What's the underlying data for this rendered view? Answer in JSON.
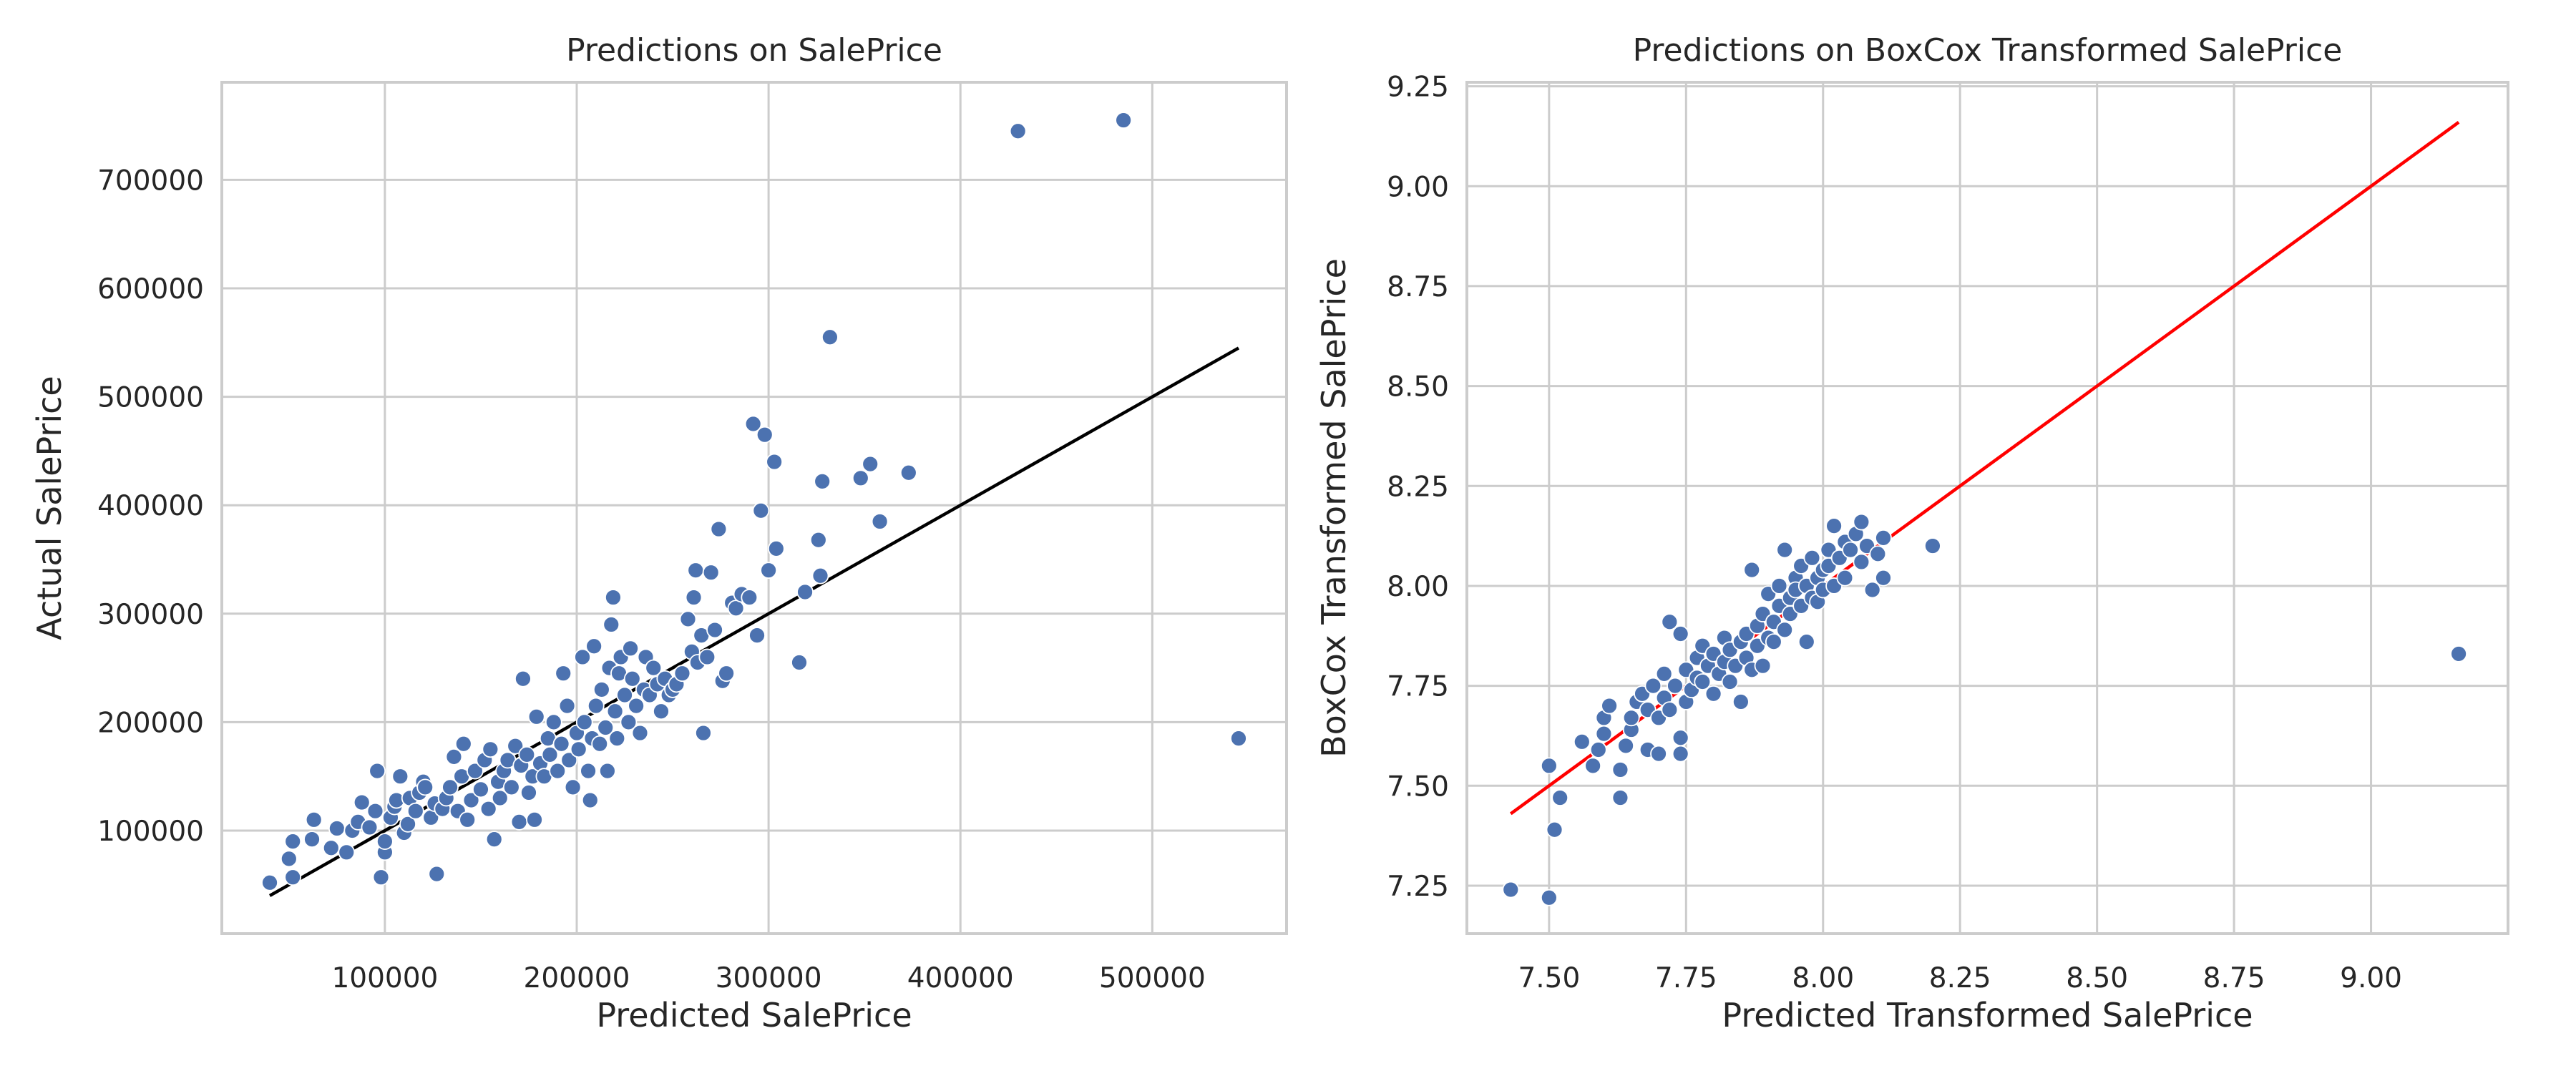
{
  "chart_data": [
    {
      "type": "scatter",
      "title": "Predictions on SalePrice",
      "xlabel": "Predicted SalePrice",
      "ylabel": "Actual SalePrice",
      "xlim": [
        15000,
        570000
      ],
      "ylim": [
        5000,
        790000
      ],
      "xticks": [
        100000,
        200000,
        300000,
        400000,
        500000
      ],
      "yticks": [
        100000,
        200000,
        300000,
        400000,
        500000,
        600000,
        700000
      ],
      "grid": true,
      "colors": {
        "points": "#4c72b0",
        "line": "#000000",
        "axes": "#cccccc"
      },
      "reference_line": {
        "x": [
          40000,
          545000
        ],
        "y": [
          40000,
          545000
        ]
      },
      "points": [
        [
          40000,
          52000
        ],
        [
          52000,
          57000
        ],
        [
          50000,
          74000
        ],
        [
          52000,
          90000
        ],
        [
          62000,
          92000
        ],
        [
          63000,
          110000
        ],
        [
          72000,
          84000
        ],
        [
          75000,
          102000
        ],
        [
          80000,
          80000
        ],
        [
          83000,
          100000
        ],
        [
          86000,
          108000
        ],
        [
          88000,
          126000
        ],
        [
          92000,
          103000
        ],
        [
          95000,
          118000
        ],
        [
          96000,
          155000
        ],
        [
          98000,
          57000
        ],
        [
          100000,
          80000
        ],
        [
          100000,
          90000
        ],
        [
          103000,
          112000
        ],
        [
          105000,
          122000
        ],
        [
          106000,
          128000
        ],
        [
          108000,
          150000
        ],
        [
          110000,
          98000
        ],
        [
          112000,
          106000
        ],
        [
          113000,
          130000
        ],
        [
          116000,
          118000
        ],
        [
          118000,
          135000
        ],
        [
          120000,
          145000
        ],
        [
          121000,
          140000
        ],
        [
          124000,
          112000
        ],
        [
          126000,
          125000
        ],
        [
          127000,
          60000
        ],
        [
          130000,
          120000
        ],
        [
          132000,
          130000
        ],
        [
          134000,
          140000
        ],
        [
          136000,
          168000
        ],
        [
          138000,
          118000
        ],
        [
          140000,
          150000
        ],
        [
          141000,
          180000
        ],
        [
          143000,
          110000
        ],
        [
          145000,
          128000
        ],
        [
          147000,
          155000
        ],
        [
          150000,
          138000
        ],
        [
          152000,
          165000
        ],
        [
          154000,
          120000
        ],
        [
          155000,
          175000
        ],
        [
          157000,
          92000
        ],
        [
          159000,
          145000
        ],
        [
          160000,
          130000
        ],
        [
          162000,
          155000
        ],
        [
          164000,
          165000
        ],
        [
          166000,
          140000
        ],
        [
          168000,
          178000
        ],
        [
          170000,
          108000
        ],
        [
          171000,
          160000
        ],
        [
          172000,
          240000
        ],
        [
          174000,
          170000
        ],
        [
          175000,
          135000
        ],
        [
          177000,
          150000
        ],
        [
          178000,
          110000
        ],
        [
          179000,
          205000
        ],
        [
          181000,
          162000
        ],
        [
          183000,
          150000
        ],
        [
          185000,
          185000
        ],
        [
          186000,
          170000
        ],
        [
          188000,
          200000
        ],
        [
          190000,
          155000
        ],
        [
          192000,
          180000
        ],
        [
          193000,
          245000
        ],
        [
          195000,
          215000
        ],
        [
          196000,
          165000
        ],
        [
          198000,
          140000
        ],
        [
          200000,
          190000
        ],
        [
          201000,
          175000
        ],
        [
          203000,
          260000
        ],
        [
          204000,
          200000
        ],
        [
          206000,
          155000
        ],
        [
          207000,
          128000
        ],
        [
          208000,
          185000
        ],
        [
          209000,
          270000
        ],
        [
          210000,
          215000
        ],
        [
          212000,
          180000
        ],
        [
          213000,
          230000
        ],
        [
          215000,
          195000
        ],
        [
          216000,
          155000
        ],
        [
          217000,
          250000
        ],
        [
          218000,
          290000
        ],
        [
          219000,
          315000
        ],
        [
          220000,
          210000
        ],
        [
          221000,
          185000
        ],
        [
          222000,
          245000
        ],
        [
          223000,
          260000
        ],
        [
          225000,
          225000
        ],
        [
          227000,
          200000
        ],
        [
          228000,
          268000
        ],
        [
          229000,
          240000
        ],
        [
          231000,
          215000
        ],
        [
          233000,
          190000
        ],
        [
          235000,
          230000
        ],
        [
          236000,
          260000
        ],
        [
          238000,
          225000
        ],
        [
          240000,
          250000
        ],
        [
          242000,
          235000
        ],
        [
          244000,
          210000
        ],
        [
          246000,
          240000
        ],
        [
          248000,
          225000
        ],
        [
          250000,
          230000
        ],
        [
          252000,
          235000
        ],
        [
          255000,
          245000
        ],
        [
          258000,
          295000
        ],
        [
          260000,
          265000
        ],
        [
          261000,
          315000
        ],
        [
          262000,
          340000
        ],
        [
          263000,
          255000
        ],
        [
          265000,
          280000
        ],
        [
          266000,
          190000
        ],
        [
          268000,
          260000
        ],
        [
          270000,
          338000
        ],
        [
          272000,
          285000
        ],
        [
          274000,
          378000
        ],
        [
          276000,
          238000
        ],
        [
          278000,
          245000
        ],
        [
          281000,
          310000
        ],
        [
          283000,
          305000
        ],
        [
          286000,
          318000
        ],
        [
          290000,
          315000
        ],
        [
          292000,
          475000
        ],
        [
          294000,
          280000
        ],
        [
          296000,
          395000
        ],
        [
          298000,
          465000
        ],
        [
          300000,
          340000
        ],
        [
          303000,
          440000
        ],
        [
          304000,
          360000
        ],
        [
          316000,
          255000
        ],
        [
          319000,
          320000
        ],
        [
          326000,
          368000
        ],
        [
          327000,
          335000
        ],
        [
          328000,
          422000
        ],
        [
          332000,
          555000
        ],
        [
          348000,
          425000
        ],
        [
          353000,
          438000
        ],
        [
          358000,
          385000
        ],
        [
          373000,
          430000
        ],
        [
          430000,
          745000
        ],
        [
          485000,
          755000
        ],
        [
          545000,
          185000
        ]
      ]
    },
    {
      "type": "scatter",
      "title": "Predictions on BoxCox Transformed SalePrice",
      "xlabel": "Predicted Transformed SalePrice",
      "ylabel": "BoxCox Transformed SalePrice",
      "xlim": [
        7.35,
        9.25
      ],
      "ylim": [
        7.13,
        9.26
      ],
      "xticks": [
        7.5,
        7.75,
        8.0,
        8.25,
        8.5,
        8.75,
        9.0
      ],
      "yticks": [
        7.25,
        7.5,
        7.75,
        8.0,
        8.25,
        8.5,
        8.75,
        9.0,
        9.25
      ],
      "tick_format_decimals": 2,
      "grid": true,
      "colors": {
        "points": "#4c72b0",
        "line": "#ff0000",
        "axes": "#cccccc"
      },
      "reference_line": {
        "x": [
          7.43,
          9.16
        ],
        "y": [
          7.43,
          9.16
        ]
      },
      "points": [
        [
          7.43,
          7.24
        ],
        [
          7.5,
          7.22
        ],
        [
          7.5,
          7.55
        ],
        [
          7.51,
          7.39
        ],
        [
          7.52,
          7.47
        ],
        [
          7.56,
          7.61
        ],
        [
          7.58,
          7.55
        ],
        [
          7.59,
          7.59
        ],
        [
          7.6,
          7.63
        ],
        [
          7.6,
          7.67
        ],
        [
          7.61,
          7.7
        ],
        [
          7.63,
          7.47
        ],
        [
          7.63,
          7.54
        ],
        [
          7.64,
          7.6
        ],
        [
          7.65,
          7.64
        ],
        [
          7.65,
          7.67
        ],
        [
          7.66,
          7.71
        ],
        [
          7.67,
          7.73
        ],
        [
          7.68,
          7.59
        ],
        [
          7.68,
          7.69
        ],
        [
          7.69,
          7.75
        ],
        [
          7.7,
          7.67
        ],
        [
          7.7,
          7.58
        ],
        [
          7.71,
          7.72
        ],
        [
          7.71,
          7.78
        ],
        [
          7.72,
          7.91
        ],
        [
          7.72,
          7.69
        ],
        [
          7.73,
          7.75
        ],
        [
          7.74,
          7.58
        ],
        [
          7.74,
          7.62
        ],
        [
          7.74,
          7.88
        ],
        [
          7.75,
          7.71
        ],
        [
          7.75,
          7.79
        ],
        [
          7.76,
          7.74
        ],
        [
          7.77,
          7.82
        ],
        [
          7.77,
          7.77
        ],
        [
          7.78,
          7.85
        ],
        [
          7.78,
          7.76
        ],
        [
          7.79,
          7.8
        ],
        [
          7.8,
          7.73
        ],
        [
          7.8,
          7.83
        ],
        [
          7.81,
          7.78
        ],
        [
          7.82,
          7.87
        ],
        [
          7.82,
          7.81
        ],
        [
          7.83,
          7.76
        ],
        [
          7.83,
          7.84
        ],
        [
          7.84,
          7.8
        ],
        [
          7.85,
          7.86
        ],
        [
          7.85,
          7.71
        ],
        [
          7.86,
          7.82
        ],
        [
          7.86,
          7.88
        ],
        [
          7.87,
          8.04
        ],
        [
          7.87,
          7.79
        ],
        [
          7.88,
          7.85
        ],
        [
          7.88,
          7.9
        ],
        [
          7.89,
          7.93
        ],
        [
          7.89,
          7.8
        ],
        [
          7.9,
          7.87
        ],
        [
          7.9,
          7.98
        ],
        [
          7.91,
          7.91
        ],
        [
          7.91,
          7.86
        ],
        [
          7.92,
          7.95
        ],
        [
          7.92,
          8.0
        ],
        [
          7.93,
          7.89
        ],
        [
          7.93,
          8.09
        ],
        [
          7.94,
          7.97
        ],
        [
          7.94,
          7.93
        ],
        [
          7.95,
          8.02
        ],
        [
          7.95,
          7.99
        ],
        [
          7.96,
          7.95
        ],
        [
          7.96,
          8.05
        ],
        [
          7.97,
          7.86
        ],
        [
          7.97,
          8.0
        ],
        [
          7.98,
          7.97
        ],
        [
          7.98,
          8.07
        ],
        [
          7.99,
          8.02
        ],
        [
          7.99,
          7.96
        ],
        [
          8.0,
          8.04
        ],
        [
          8.0,
          7.99
        ],
        [
          8.01,
          8.09
        ],
        [
          8.01,
          8.05
        ],
        [
          8.02,
          8.15
        ],
        [
          8.02,
          8.0
        ],
        [
          8.03,
          8.07
        ],
        [
          8.04,
          8.11
        ],
        [
          8.04,
          8.02
        ],
        [
          8.05,
          8.09
        ],
        [
          8.06,
          8.13
        ],
        [
          8.07,
          8.16
        ],
        [
          8.07,
          8.06
        ],
        [
          8.08,
          8.1
        ],
        [
          8.09,
          7.99
        ],
        [
          8.1,
          8.08
        ],
        [
          8.11,
          8.02
        ],
        [
          8.11,
          8.12
        ],
        [
          8.2,
          8.1
        ],
        [
          9.16,
          7.83
        ]
      ]
    }
  ]
}
